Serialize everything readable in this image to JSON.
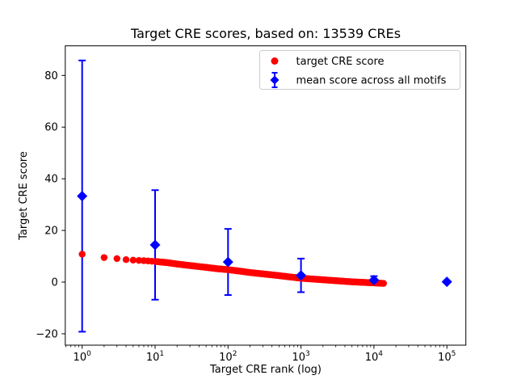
{
  "figure": {
    "title": "Target CRE scores, based on: 13539 CREs",
    "xlabel": "Target CRE rank (log)",
    "ylabel": "Target CRE score"
  },
  "axes": {
    "x_scale": "log",
    "x_major_tick_exponents": [
      0,
      1,
      2,
      3,
      4,
      5
    ],
    "y_ticks": [
      -20,
      0,
      20,
      40,
      60,
      80
    ],
    "xlim_log10": [
      -0.23,
      5.27
    ],
    "ylim": [
      -24.4,
      91.5
    ],
    "spine_color": "#000000",
    "background": "#ffffff"
  },
  "legend": {
    "position": "upper right",
    "border_color": "#cccccc",
    "items": [
      {
        "label": "target CRE score",
        "marker": "circle",
        "color": "#ff0000"
      },
      {
        "label": "mean score across all motifs",
        "marker": "diamond-errorbar",
        "color": "#0000ff"
      }
    ]
  },
  "chart_data": {
    "type": "scatter",
    "title": "Target CRE scores, based on: 13539 CREs",
    "xlabel": "Target CRE rank (log)",
    "ylabel": "Target CRE score",
    "x_scale": "log",
    "xlim_log10": [
      -0.23,
      5.27
    ],
    "ylim": [
      -24.4,
      91.5
    ],
    "grid": false,
    "legend_position": "upper right",
    "n_cres": 13539,
    "series": [
      {
        "name": "target CRE score",
        "type": "scatter",
        "marker": "circle",
        "color": "#ff0000",
        "n_points_total": 13539,
        "points_sampled": [
          [
            1,
            10.8
          ],
          [
            2,
            9.5
          ],
          [
            3,
            9.1
          ],
          [
            4,
            8.7
          ],
          [
            5,
            8.5
          ],
          [
            7,
            8.3
          ],
          [
            10,
            8.0
          ],
          [
            15,
            7.5
          ],
          [
            20,
            7.0
          ],
          [
            30,
            6.4
          ],
          [
            50,
            5.7
          ],
          [
            70,
            5.2
          ],
          [
            100,
            4.8
          ],
          [
            150,
            4.2
          ],
          [
            200,
            3.7
          ],
          [
            316,
            3.1
          ],
          [
            500,
            2.5
          ],
          [
            700,
            2.0
          ],
          [
            1000,
            1.5
          ],
          [
            2000,
            0.9
          ],
          [
            3162,
            0.5
          ],
          [
            5000,
            0.1
          ],
          [
            10000,
            -0.3
          ],
          [
            13539,
            -0.5
          ]
        ]
      },
      {
        "name": "mean score across all motifs",
        "type": "errorbar",
        "marker": "diamond",
        "color": "#0000ff",
        "x": [
          1,
          10,
          100,
          1000,
          10000,
          100000
        ],
        "mean": [
          33.3,
          14.4,
          7.8,
          2.6,
          0.8,
          0.1
        ],
        "std": [
          52.5,
          21.2,
          12.8,
          6.5,
          1.5,
          0.4
        ]
      }
    ]
  }
}
